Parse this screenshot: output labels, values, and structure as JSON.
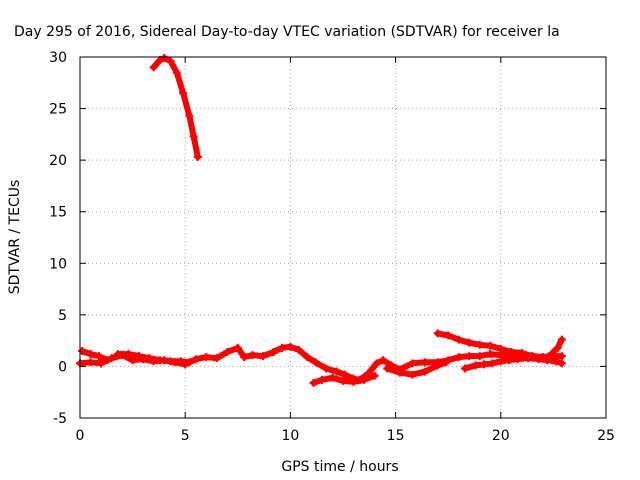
{
  "chart_data": {
    "type": "scatter",
    "title": "Day 295 of 2016, Sidereal Day-to-day VTEC variation (SDTVAR) for receiver la",
    "xlabel": "GPS time / hours",
    "ylabel": "SDTVAR / TECUs",
    "xlim": [
      0,
      25
    ],
    "ylim": [
      -5,
      30
    ],
    "xticks": [
      0,
      5,
      10,
      15,
      20,
      25
    ],
    "yticks": [
      -5,
      0,
      5,
      10,
      15,
      20,
      25,
      30
    ],
    "xtick_labels": [
      "0",
      "5",
      "10",
      "15",
      "20",
      "25"
    ],
    "ytick_labels": [
      "-5",
      "0",
      "5",
      "10",
      "15",
      "20",
      "25",
      "30"
    ],
    "grid": true,
    "color": "#ff0000",
    "series": [
      {
        "values": [
          [
            3.5,
            29.0
          ],
          [
            3.8,
            29.7
          ],
          [
            4.0,
            29.9
          ],
          [
            4.3,
            29.6
          ],
          [
            4.6,
            28.5
          ],
          [
            4.9,
            26.5
          ],
          [
            5.2,
            24.3
          ],
          [
            5.4,
            22.3
          ],
          [
            5.6,
            20.3
          ]
        ]
      },
      {
        "values": [
          [
            0.0,
            0.3
          ],
          [
            0.5,
            0.4
          ],
          [
            1.0,
            0.3
          ],
          [
            1.5,
            0.8
          ],
          [
            2.0,
            1.1
          ],
          [
            2.5,
            0.6
          ],
          [
            3.0,
            0.7
          ],
          [
            3.5,
            0.5
          ],
          [
            4.0,
            0.6
          ],
          [
            4.5,
            0.4
          ],
          [
            5.0,
            0.2
          ],
          [
            5.5,
            0.7
          ],
          [
            6.0,
            0.9
          ],
          [
            6.5,
            0.8
          ],
          [
            7.0,
            1.4
          ],
          [
            7.5,
            1.8
          ],
          [
            7.8,
            0.9
          ],
          [
            8.2,
            1.1
          ],
          [
            8.7,
            1.0
          ],
          [
            9.2,
            1.4
          ],
          [
            9.6,
            1.8
          ],
          [
            10.0,
            1.9
          ],
          [
            10.4,
            1.6
          ],
          [
            10.8,
            0.9
          ],
          [
            11.2,
            0.4
          ],
          [
            11.7,
            -0.2
          ],
          [
            12.2,
            -0.5
          ],
          [
            12.6,
            -0.8
          ],
          [
            13.0,
            -1.2
          ],
          [
            13.3,
            -1.3
          ],
          [
            13.7,
            -0.7
          ],
          [
            14.1,
            0.3
          ],
          [
            14.4,
            0.6
          ],
          [
            14.8,
            0.1
          ],
          [
            15.2,
            -0.3
          ],
          [
            15.8,
            0.3
          ],
          [
            16.4,
            0.4
          ],
          [
            17.0,
            0.4
          ],
          [
            17.5,
            0.6
          ],
          [
            18.0,
            0.9
          ],
          [
            18.5,
            1.0
          ],
          [
            19.0,
            1.0
          ],
          [
            19.5,
            1.2
          ],
          [
            20.0,
            1.1
          ],
          [
            20.5,
            1.1
          ],
          [
            21.0,
            1.1
          ],
          [
            21.5,
            1.0
          ],
          [
            22.0,
            0.9
          ],
          [
            22.5,
            1.0
          ],
          [
            22.9,
            1.0
          ]
        ]
      },
      {
        "values": [
          [
            0.1,
            1.5
          ],
          [
            0.5,
            1.2
          ],
          [
            0.9,
            1.0
          ],
          [
            1.3,
            0.6
          ]
        ]
      },
      {
        "values": [
          [
            1.8,
            1.2
          ],
          [
            2.3,
            1.2
          ],
          [
            2.8,
            1.0
          ],
          [
            3.3,
            0.8
          ],
          [
            3.8,
            0.6
          ],
          [
            4.3,
            0.5
          ],
          [
            4.8,
            0.5
          ],
          [
            5.2,
            0.4
          ]
        ]
      },
      {
        "values": [
          [
            11.1,
            -1.6
          ],
          [
            11.5,
            -1.3
          ],
          [
            12.0,
            -1.1
          ],
          [
            12.5,
            -1.4
          ],
          [
            13.0,
            -1.5
          ],
          [
            13.5,
            -1.3
          ],
          [
            14.0,
            -0.9
          ]
        ]
      },
      {
        "values": [
          [
            14.6,
            -0.2
          ],
          [
            15.2,
            -0.6
          ],
          [
            15.8,
            -0.8
          ],
          [
            16.4,
            -0.5
          ],
          [
            17.0,
            0.1
          ],
          [
            17.4,
            0.4
          ]
        ]
      },
      {
        "values": [
          [
            17.0,
            3.2
          ],
          [
            17.5,
            3.0
          ],
          [
            18.0,
            2.6
          ],
          [
            18.5,
            2.3
          ],
          [
            19.0,
            2.1
          ],
          [
            19.5,
            2.0
          ],
          [
            20.0,
            1.7
          ],
          [
            20.5,
            1.4
          ],
          [
            21.0,
            1.3
          ],
          [
            21.5,
            1.0
          ],
          [
            22.0,
            0.9
          ],
          [
            22.3,
            1.0
          ],
          [
            22.7,
            1.8
          ],
          [
            22.9,
            2.6
          ]
        ]
      },
      {
        "values": [
          [
            18.3,
            -0.2
          ],
          [
            18.8,
            0.1
          ],
          [
            19.2,
            0.2
          ],
          [
            19.6,
            0.3
          ],
          [
            20.0,
            0.5
          ],
          [
            20.4,
            0.6
          ],
          [
            20.8,
            0.7
          ],
          [
            21.3,
            0.8
          ],
          [
            21.8,
            0.7
          ],
          [
            22.2,
            0.6
          ],
          [
            22.6,
            0.5
          ],
          [
            22.9,
            0.3
          ]
        ]
      }
    ]
  }
}
